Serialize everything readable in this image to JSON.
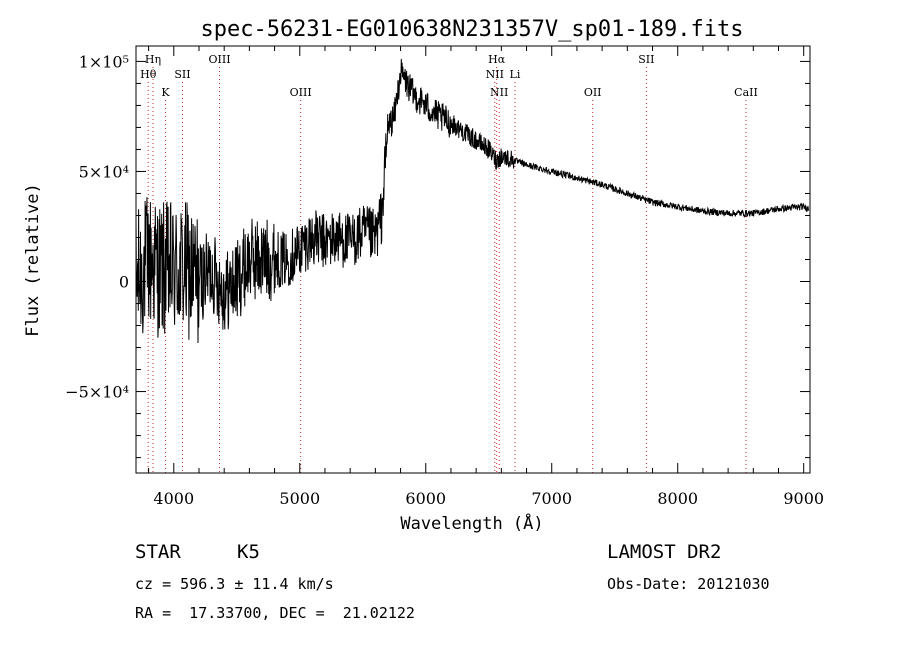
{
  "chart_data": {
    "type": "line",
    "title": "spec-56231-EG010638N231357V_sp01-189.fits",
    "xlabel": "Wavelength (Å)",
    "ylabel": "Flux (relative)",
    "xlim": [
      3700,
      9050
    ],
    "ylim": [
      -87000,
      107000
    ],
    "x_ticks": [
      {
        "value": 4000,
        "label": "4000"
      },
      {
        "value": 5000,
        "label": "5000"
      },
      {
        "value": 6000,
        "label": "6000"
      },
      {
        "value": 7000,
        "label": "7000"
      },
      {
        "value": 8000,
        "label": "8000"
      },
      {
        "value": 9000,
        "label": "9000"
      }
    ],
    "y_ticks": [
      {
        "value": 100000,
        "label": "1×10⁵"
      },
      {
        "value": 50000,
        "label": "5×10⁴"
      },
      {
        "value": 0,
        "label": "0"
      },
      {
        "value": -50000,
        "label": "−5×10⁴"
      }
    ],
    "spectral_lines": [
      {
        "name": "Hη",
        "wavelength": 3835,
        "row": 1
      },
      {
        "name": "Hθ",
        "wavelength": 3797,
        "row": 2
      },
      {
        "name": "SII",
        "wavelength": 4069,
        "row": 2
      },
      {
        "name": "K",
        "wavelength": 3934,
        "row": 3
      },
      {
        "name": "OIII",
        "wavelength": 4363,
        "row": 1
      },
      {
        "name": "OIII",
        "wavelength": 5007,
        "row": 3
      },
      {
        "name": "Hα",
        "wavelength": 6563,
        "row": 1
      },
      {
        "name": "NII",
        "wavelength": 6548,
        "row": 2
      },
      {
        "name": "Li",
        "wavelength": 6708,
        "row": 2
      },
      {
        "name": "NII",
        "wavelength": 6583,
        "row": 3
      },
      {
        "name": "OII",
        "wavelength": 7325,
        "row": 3
      },
      {
        "name": "SII",
        "wavelength": 7751,
        "row": 1
      },
      {
        "name": "CaII",
        "wavelength": 8542,
        "row": 3
      }
    ],
    "line_marker_color": "#d62728",
    "series": [
      {
        "name": "flux",
        "color": "#000000",
        "anchors": [
          [
            3700,
            0
          ],
          [
            3800,
            10000
          ],
          [
            3900,
            5000
          ],
          [
            4000,
            5000
          ],
          [
            4100,
            5000
          ],
          [
            4200,
            0
          ],
          [
            4300,
            5000
          ],
          [
            4400,
            -5000
          ],
          [
            4500,
            0
          ],
          [
            4600,
            10000
          ],
          [
            4700,
            10000
          ],
          [
            4800,
            10000
          ],
          [
            4900,
            10000
          ],
          [
            5000,
            15000
          ],
          [
            5100,
            20000
          ],
          [
            5200,
            18000
          ],
          [
            5300,
            20000
          ],
          [
            5400,
            18000
          ],
          [
            5500,
            22000
          ],
          [
            5600,
            20000
          ],
          [
            5650,
            30000
          ],
          [
            5700,
            70000
          ],
          [
            5750,
            75000
          ],
          [
            5800,
            95000
          ],
          [
            5850,
            90000
          ],
          [
            5900,
            85000
          ],
          [
            6000,
            80000
          ],
          [
            6100,
            75000
          ],
          [
            6200,
            72000
          ],
          [
            6300,
            68000
          ],
          [
            6400,
            64000
          ],
          [
            6500,
            60000
          ],
          [
            6560,
            55000
          ],
          [
            6600,
            57000
          ],
          [
            6700,
            55000
          ],
          [
            6800,
            53000
          ],
          [
            7000,
            50000
          ],
          [
            7200,
            47000
          ],
          [
            7400,
            44000
          ],
          [
            7600,
            40000
          ],
          [
            7800,
            36000
          ],
          [
            8000,
            34000
          ],
          [
            8200,
            32000
          ],
          [
            8400,
            31000
          ],
          [
            8600,
            31000
          ],
          [
            8800,
            33000
          ],
          [
            9000,
            34000
          ],
          [
            9040,
            33000
          ]
        ],
        "noise": [
          {
            "from": 3700,
            "to": 4200,
            "amplitude": 32000
          },
          {
            "from": 4200,
            "to": 4800,
            "amplitude": 19000
          },
          {
            "from": 4800,
            "to": 5700,
            "amplitude": 13000
          },
          {
            "from": 5700,
            "to": 6200,
            "amplitude": 7000
          },
          {
            "from": 6200,
            "to": 6700,
            "amplitude": 4500
          },
          {
            "from": 6700,
            "to": 9050,
            "amplitude": 1500
          }
        ]
      }
    ]
  },
  "info": {
    "object_class": "STAR",
    "subclass": "K5",
    "survey": "LAMOST DR2",
    "redshift": "cz = 596.3 ± 11.4 km/s",
    "obs_date": "Obs-Date: 20121030",
    "coordinates": "RA =  17.33700, DEC =  21.02122"
  }
}
